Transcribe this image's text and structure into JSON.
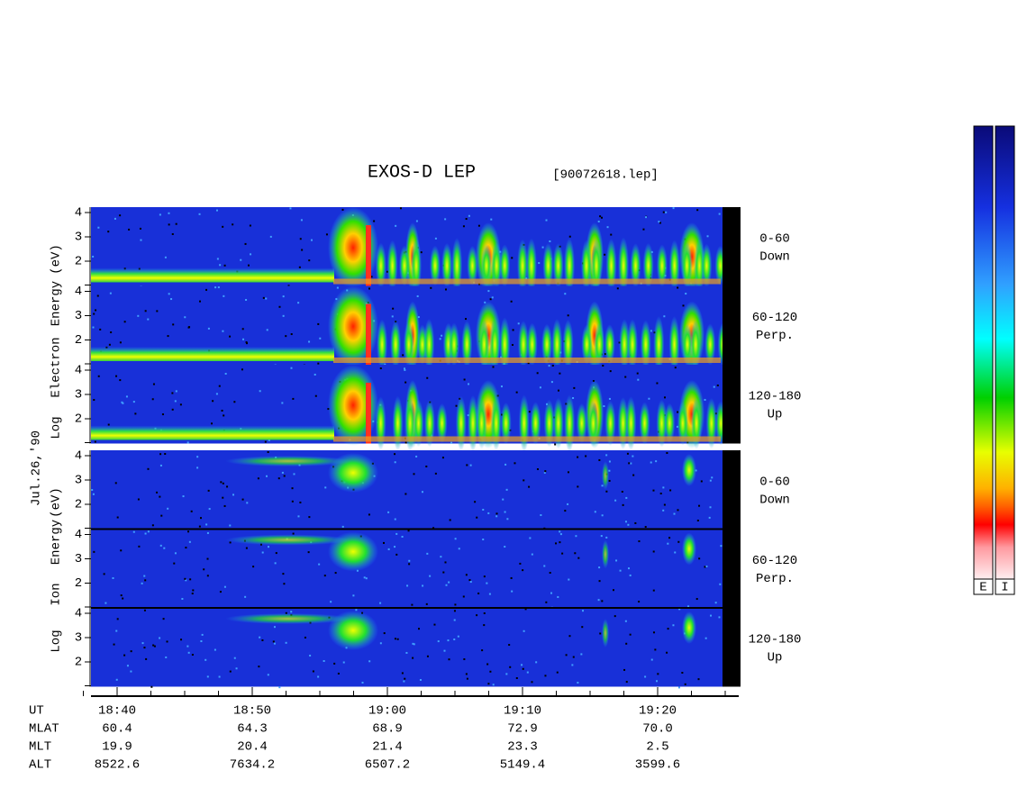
{
  "title": "EXOS-D LEP",
  "file": "[90072618.lep]",
  "date": "Jul.26,'90",
  "groups": [
    {
      "ylabel": [
        "Log",
        "Electron",
        "Energy",
        "(eV)"
      ],
      "panels": [
        [
          "0-60",
          "Down"
        ],
        [
          "60-120",
          "Perp."
        ],
        [
          "120-180",
          "Up"
        ]
      ]
    },
    {
      "ylabel": [
        "Log",
        "Ion",
        "Energy",
        "(eV)"
      ],
      "panels": [
        [
          "0-60",
          "Down"
        ],
        [
          "60-120",
          "Perp."
        ],
        [
          "120-180",
          "Up"
        ]
      ]
    }
  ],
  "yticks": [
    2,
    3,
    4
  ],
  "x_axis": {
    "rows": [
      {
        "label": "UT",
        "values": [
          "18:40",
          "18:50",
          "19:00",
          "19:10",
          "19:20"
        ]
      },
      {
        "label": "MLAT",
        "values": [
          "60.4",
          "64.3",
          "68.9",
          "72.9",
          "70.0"
        ]
      },
      {
        "label": "MLT",
        "values": [
          "19.9",
          "20.4",
          "21.4",
          "23.3",
          "2.5"
        ]
      },
      {
        "label": "ALT",
        "values": [
          "8522.6",
          "7634.2",
          "6507.2",
          "5149.4",
          "3599.6"
        ]
      }
    ]
  },
  "colorbar_labels": [
    "E",
    "I"
  ]
}
